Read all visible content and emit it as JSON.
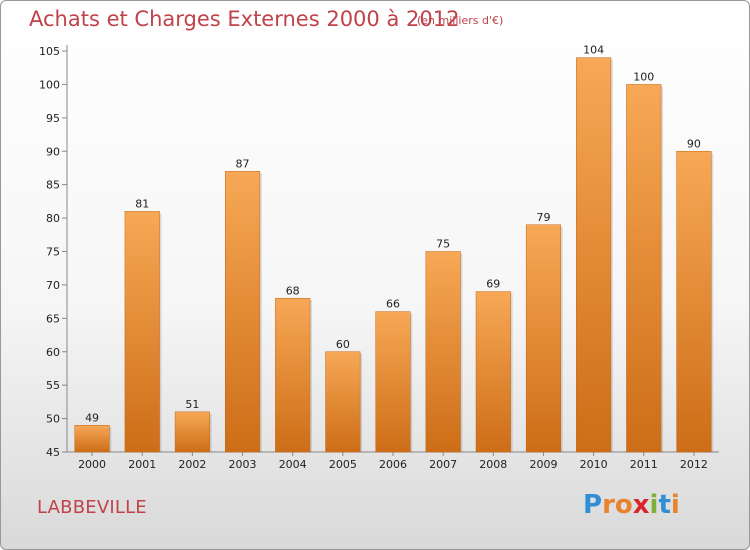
{
  "header": {
    "title": "Achats et Charges Externes 2000 à 2012",
    "subtitle": "(en milliers d'€)"
  },
  "footer": {
    "commune": "LABBEVILLE",
    "logo_letters": [
      "P",
      "r",
      "o",
      "x",
      "i",
      "t",
      "i"
    ],
    "logo_colors": [
      "#2f8fd6",
      "#e9822c",
      "#e9822c",
      "#d9262c",
      "#7bb33a",
      "#2f8fd6",
      "#e9822c"
    ]
  },
  "colors": {
    "bar_top": "#f7a856",
    "bar_bottom": "#cd6d17",
    "title": "#c0434a",
    "grid": "#dddddd",
    "axis": "#888888"
  },
  "chart_data": {
    "type": "bar",
    "title": "Achats et Charges Externes 2000 à 2012",
    "subtitle": "(en milliers d'€)",
    "xlabel": "",
    "ylabel": "",
    "categories": [
      "2000",
      "2001",
      "2002",
      "2003",
      "2004",
      "2005",
      "2006",
      "2007",
      "2008",
      "2009",
      "2010",
      "2011",
      "2012"
    ],
    "values": [
      49,
      81,
      51,
      87,
      68,
      60,
      66,
      75,
      69,
      79,
      104,
      100,
      90
    ],
    "ylim": [
      45,
      105
    ],
    "yticks": [
      45,
      50,
      55,
      60,
      65,
      70,
      75,
      80,
      85,
      90,
      95,
      100,
      105
    ],
    "grid": false,
    "legend": "none"
  }
}
